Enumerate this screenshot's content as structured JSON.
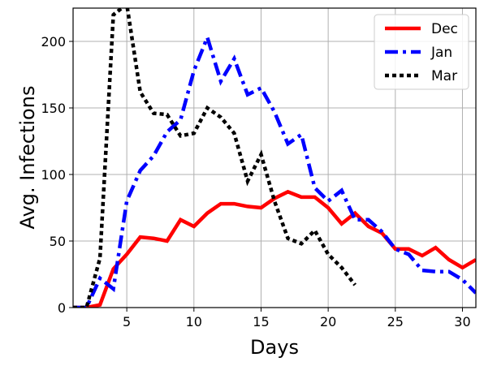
{
  "chart_data": {
    "type": "line",
    "title": "",
    "xlabel": "Days",
    "ylabel": "Avg. Infections",
    "xlim": [
      1,
      31
    ],
    "ylim": [
      0,
      225
    ],
    "xticks": [
      5,
      10,
      15,
      20,
      25,
      30
    ],
    "yticks": [
      0,
      50,
      100,
      150,
      200
    ],
    "grid": true,
    "legend_position": "top-right",
    "series": [
      {
        "name": "Dec",
        "color": "#ff0000",
        "style": "solid",
        "x": [
          1,
          2,
          3,
          4,
          5,
          6,
          7,
          8,
          9,
          10,
          11,
          12,
          13,
          14,
          15,
          16,
          17,
          18,
          19,
          20,
          21,
          22,
          23,
          24,
          25,
          26,
          27,
          28,
          29,
          30,
          31
        ],
        "y": [
          0,
          0,
          2,
          29,
          40,
          53,
          52,
          50,
          66,
          61,
          71,
          78,
          78,
          76,
          75,
          82,
          87,
          83,
          83,
          75,
          63,
          71,
          61,
          56,
          44,
          44,
          39,
          45,
          36,
          30,
          36
        ]
      },
      {
        "name": "Jan",
        "color": "#0000ff",
        "style": "dashdot",
        "x": [
          1,
          2,
          3,
          4,
          5,
          6,
          7,
          8,
          9,
          10,
          11,
          12,
          13,
          14,
          15,
          16,
          17,
          18,
          19,
          20,
          21,
          22,
          23,
          24,
          25,
          26,
          27,
          28,
          29,
          30,
          31
        ],
        "y": [
          0,
          0,
          22,
          14,
          80,
          103,
          114,
          132,
          141,
          178,
          203,
          170,
          187,
          160,
          165,
          147,
          123,
          130,
          90,
          80,
          88,
          66,
          66,
          57,
          44,
          40,
          28,
          27,
          27,
          21,
          11
        ]
      },
      {
        "name": "Mar",
        "color": "#000000",
        "style": "dotted",
        "x": [
          1,
          2,
          3,
          4,
          5,
          6,
          7,
          8,
          9,
          10,
          11,
          12,
          13,
          14,
          15,
          16,
          17,
          18,
          19,
          20,
          21,
          22
        ],
        "y": [
          0,
          0,
          37,
          220,
          228,
          162,
          146,
          145,
          129,
          131,
          150,
          143,
          131,
          95,
          115,
          80,
          52,
          48,
          58,
          40,
          30,
          17
        ]
      }
    ]
  }
}
